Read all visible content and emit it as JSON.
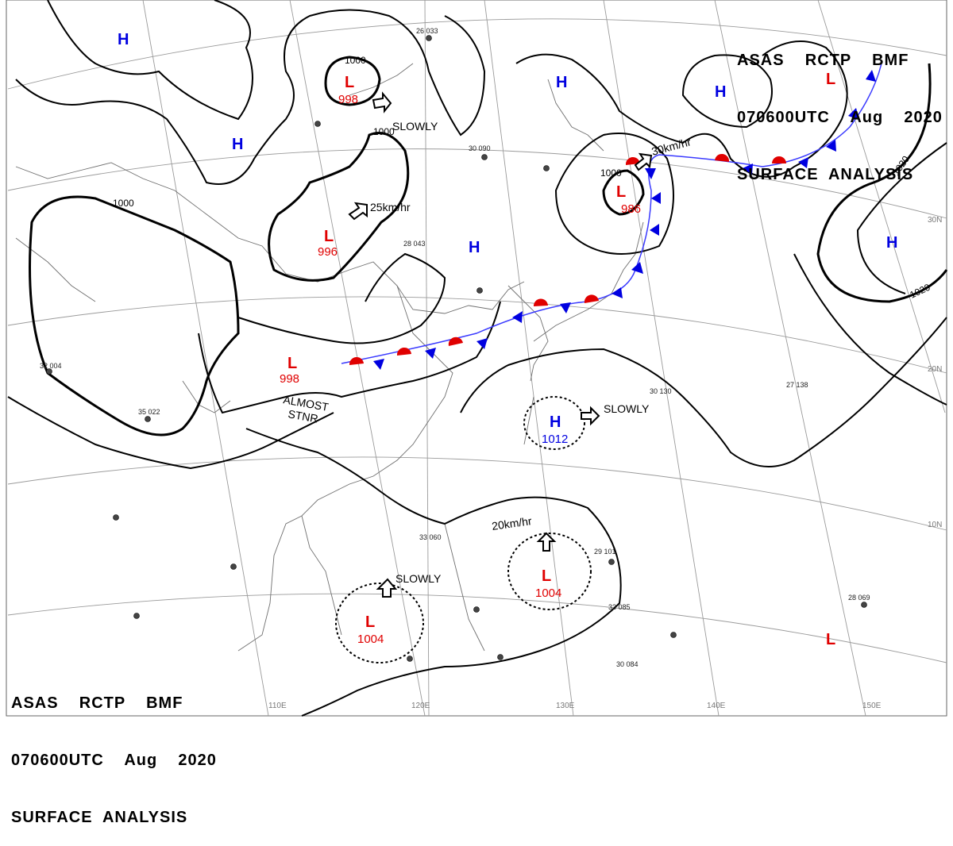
{
  "title": {
    "line1": "ASAS    RCTP    BMF",
    "line2": "070600UTC    Aug    2020",
    "line3": "SURFACE  ANALYSIS"
  },
  "longitude_labels": [
    "110E",
    "120E",
    "130E",
    "140E",
    "150E"
  ],
  "latitude_labels": [
    "30N",
    "20N",
    "10N"
  ],
  "pressure_centers": [
    {
      "type": "L",
      "value": "998"
    },
    {
      "type": "L",
      "value": "996"
    },
    {
      "type": "L",
      "value": "986"
    },
    {
      "type": "L",
      "value": "998"
    },
    {
      "type": "L",
      "value": "1004"
    },
    {
      "type": "L",
      "value": "1004"
    },
    {
      "type": "L",
      "value": ""
    },
    {
      "type": "L",
      "value": ""
    },
    {
      "type": "H",
      "value": "1012"
    },
    {
      "type": "H",
      "value": ""
    },
    {
      "type": "H",
      "value": ""
    },
    {
      "type": "H",
      "value": ""
    },
    {
      "type": "H",
      "value": ""
    },
    {
      "type": "H",
      "value": ""
    }
  ],
  "isobar_labels": [
    "1000",
    "1000",
    "1000",
    "1000",
    "1020",
    "1020"
  ],
  "motion_labels": [
    "SLOWLY",
    "25km/hr",
    "30km/hr",
    "SLOWLY",
    "20km/hr",
    "SLOWLY",
    "ALMOST",
    "STNR"
  ],
  "station_samples": [
    "26 033",
    "30 090",
    "28 043",
    "33 060",
    "29 101",
    "28 069",
    "30 130",
    "33 085",
    "30 084",
    "27 138",
    "35 022",
    "32 004"
  ],
  "colors": {
    "low": "#e00000",
    "high": "#0000e0",
    "isobar": "#000000",
    "grid": "#9a9a9a",
    "coast": "#6f6f6f"
  }
}
